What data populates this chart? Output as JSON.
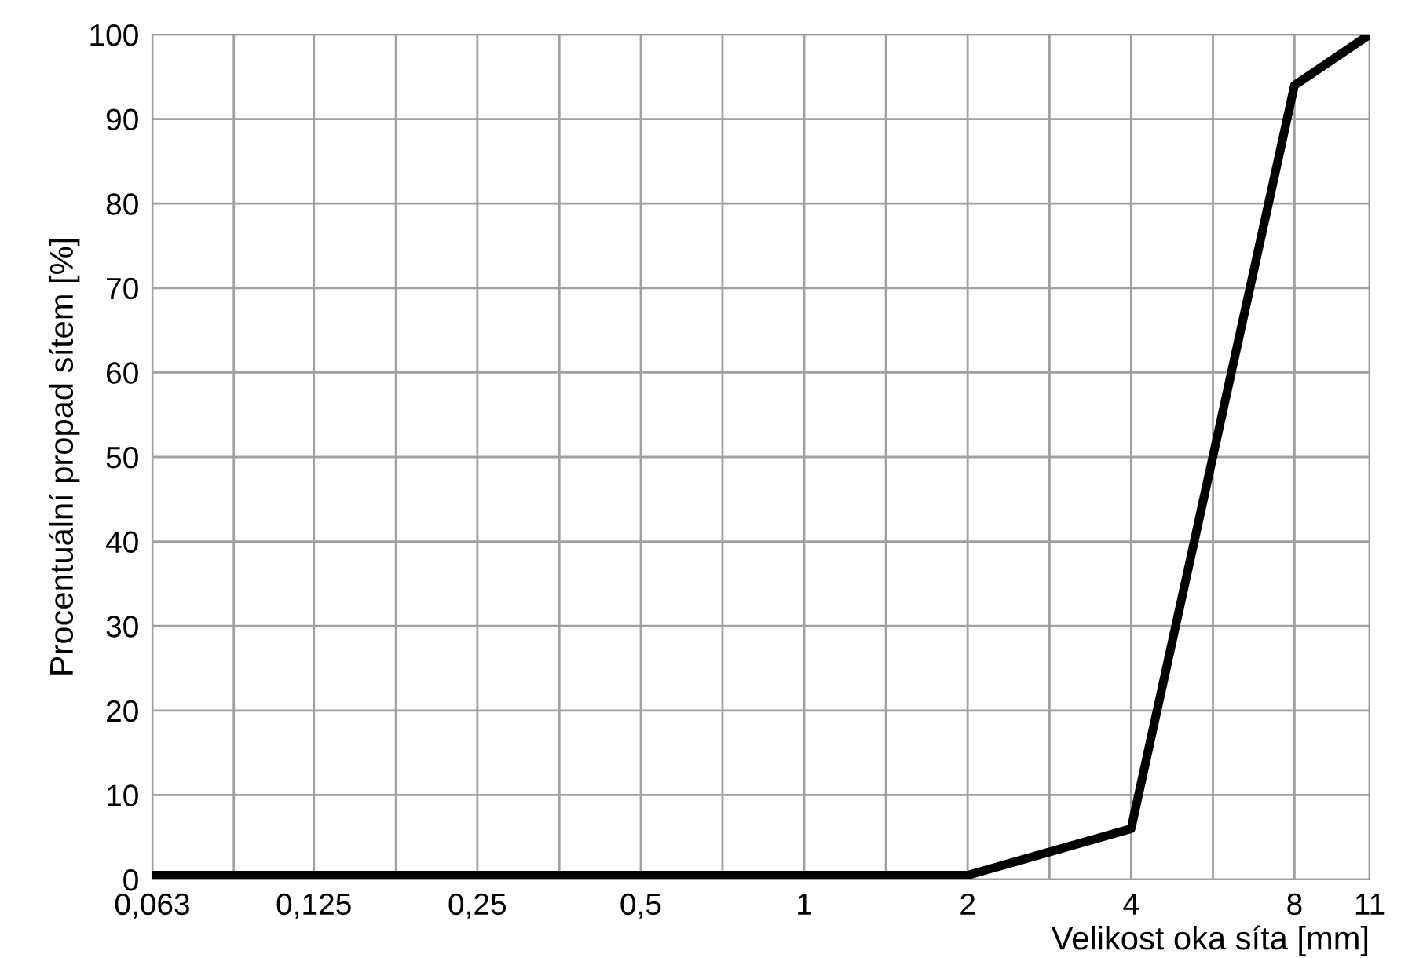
{
  "chart_data": {
    "type": "line",
    "xlabel": "Velikost oka síta [mm]",
    "ylabel": "Procentuální propad sítem [%]",
    "log": "x",
    "x": [
      0.063,
      0.125,
      0.25,
      0.5,
      1,
      2,
      4,
      8,
      11
    ],
    "series": [
      {
        "color": "#000000",
        "values": [
          0.5,
          0.5,
          0.5,
          0.5,
          0.5,
          0.5,
          6,
          94,
          100
        ]
      }
    ],
    "xlim": [
      0.063,
      11
    ],
    "ylim": [
      0,
      100
    ],
    "xticks": [
      {
        "value": 0.063,
        "label": "0,063"
      },
      {
        "value": 0.089,
        "label": null
      },
      {
        "value": 0.125,
        "label": "0,125"
      },
      {
        "value": 0.177,
        "label": null
      },
      {
        "value": 0.25,
        "label": "0,25"
      },
      {
        "value": 0.354,
        "label": null
      },
      {
        "value": 0.5,
        "label": "0,5"
      },
      {
        "value": 0.707,
        "label": null
      },
      {
        "value": 1,
        "label": "1"
      },
      {
        "value": 1.414,
        "label": null
      },
      {
        "value": 2,
        "label": "2"
      },
      {
        "value": 2.83,
        "label": null
      },
      {
        "value": 4,
        "label": "4"
      },
      {
        "value": 5.66,
        "label": null
      },
      {
        "value": 8,
        "label": "8"
      },
      {
        "value": 11,
        "label": "11"
      }
    ],
    "yticks": [
      0,
      10,
      20,
      30,
      40,
      50,
      60,
      70,
      80,
      90,
      100
    ],
    "grid": true,
    "marker": "none",
    "line_style": "solid"
  }
}
